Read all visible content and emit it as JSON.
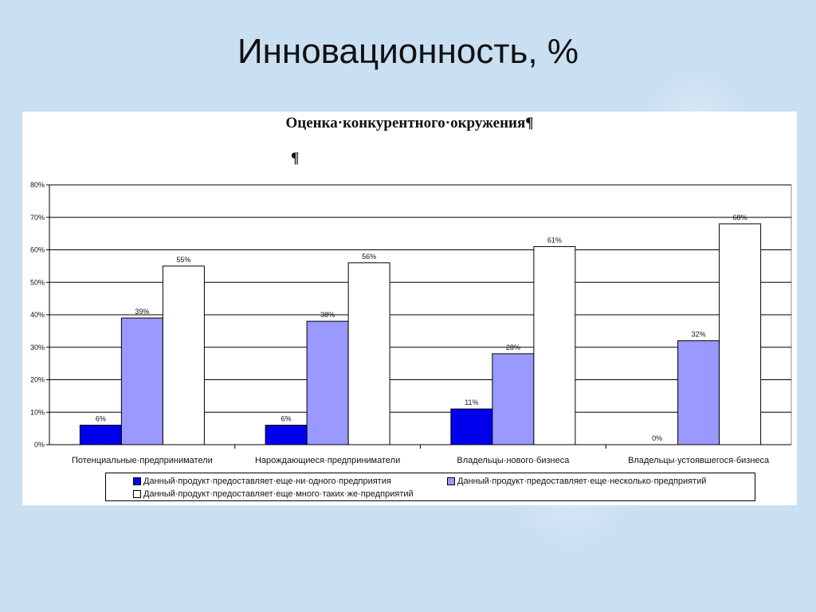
{
  "slide": {
    "title": "Инновационность, %"
  },
  "chart_data": {
    "type": "bar",
    "title": "Оценка·конкурентного·окружения¶",
    "title_mark": "¶",
    "categories": [
      "Потенциальные·предприниматели",
      "Нарождающиеся·предприниматели",
      "Владельцы·нового·бизнеса",
      "Владельцы·устоявшегося·бизнеса"
    ],
    "series": [
      {
        "name": "Данный·продукт·предоставляет·еще·ни·одного·предприятия",
        "values": [
          6,
          6,
          11,
          0
        ],
        "color": "#0000ee"
      },
      {
        "name": "Данный·продукт·предоставляет·еще·несколько·предприятий",
        "values": [
          39,
          38,
          28,
          32
        ],
        "color": "#9999ff"
      },
      {
        "name": "Данный·продукт·предоставляет·еще·много·таких·же·предприятий",
        "values": [
          55,
          56,
          61,
          68
        ],
        "color": "#ffffff"
      }
    ],
    "data_labels": [
      [
        "6%",
        "6%",
        "11%",
        "0%"
      ],
      [
        "39%",
        "38%",
        "28%",
        "32%"
      ],
      [
        "55%",
        "56%",
        "61%",
        "68%"
      ]
    ],
    "y_ticks": [
      "0%",
      "10%",
      "20%",
      "30%",
      "40%",
      "50%",
      "60%",
      "70%",
      "80%"
    ],
    "ylim": [
      0,
      80
    ],
    "grid": true,
    "legend_position": "bottom"
  }
}
